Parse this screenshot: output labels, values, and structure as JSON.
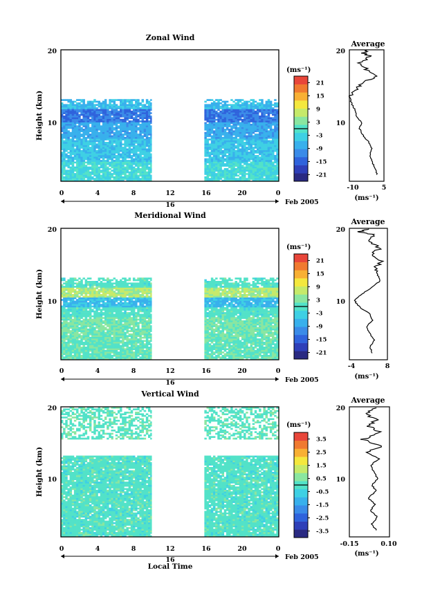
{
  "colorscale": [
    "#2a2a82",
    "#2e3fb8",
    "#2f63dc",
    "#3a8be8",
    "#38b0ec",
    "#3ed0e4",
    "#52e2c8",
    "#8ae6a0",
    "#c6ea6a",
    "#f4e83e",
    "#f8b034",
    "#f07a30",
    "#e8463a"
  ],
  "panels": [
    {
      "title": "Zonal Wind",
      "ylabel": "Height (km)",
      "yticks": [
        "10",
        "20"
      ],
      "xticks": [
        "0",
        "4",
        "8",
        "12",
        "16",
        "20",
        "0"
      ],
      "day_label": "16",
      "date_label": "Feb 2005",
      "colorbar_unit": "(ms⁻¹)",
      "colorbar_ticks": [
        "21",
        "15",
        "9",
        "3",
        "-3",
        "-9",
        "-15",
        "-21"
      ],
      "avg_title": "Average",
      "avg_yticks": [
        "10",
        "20"
      ],
      "avg_xticks": [
        "-10",
        "5"
      ],
      "avg_xlabel": "(ms⁻¹)"
    },
    {
      "title": "Meridional Wind",
      "ylabel": "Height (km)",
      "yticks": [
        "10",
        "20"
      ],
      "xticks": [
        "0",
        "4",
        "8",
        "12",
        "16",
        "20",
        "0"
      ],
      "day_label": "16",
      "date_label": "Feb 2005",
      "colorbar_unit": "(ms⁻¹)",
      "colorbar_ticks": [
        "21",
        "15",
        "9",
        "3",
        "-3",
        "-9",
        "-15",
        "-21"
      ],
      "avg_title": "Average",
      "avg_yticks": [
        "10",
        "20"
      ],
      "avg_xticks": [
        "-4",
        "8"
      ],
      "avg_xlabel": "(ms⁻¹)"
    },
    {
      "title": "Vertical Wind",
      "ylabel": "Height (km)",
      "yticks": [
        "10",
        "20"
      ],
      "xticks": [
        "0",
        "4",
        "8",
        "12",
        "16",
        "20",
        "0"
      ],
      "day_label": "16",
      "date_label": "Feb 2005",
      "colorbar_unit": "(ms⁻¹)",
      "colorbar_ticks": [
        "3.5",
        "2.5",
        "1.5",
        "0.5",
        "-0.5",
        "-1.5",
        "-2.5",
        "-3.5"
      ],
      "avg_title": "Average",
      "avg_yticks": [
        "10",
        "20"
      ],
      "avg_xticks": [
        "-0.15",
        "0.10"
      ],
      "avg_xlabel": "(ms⁻¹)"
    }
  ],
  "xlabel": "Local Time",
  "chart_data": [
    {
      "type": "heatmap",
      "title": "Zonal Wind",
      "xlabel": "",
      "ylabel": "Height (km)",
      "xlim": [
        0,
        24
      ],
      "ylim": [
        0,
        20
      ],
      "data_coverage_hours": [
        [
          0,
          10
        ],
        [
          15.8,
          24
        ]
      ],
      "colorbar_range": [
        -24,
        24
      ],
      "regimes": [
        {
          "z_range": [
            0,
            3
          ],
          "value": -2
        },
        {
          "z_range": [
            3,
            6.5
          ],
          "value": -5
        },
        {
          "z_range": [
            6.5,
            9
          ],
          "value": -8
        },
        {
          "z_range": [
            9,
            11
          ],
          "value": -13
        },
        {
          "z_range": [
            11,
            12.5
          ],
          "value": -6
        }
      ],
      "average_profile": {
        "x": [
          2,
          1,
          -1,
          -2,
          -1,
          -3,
          -6,
          -8,
          -7,
          -10,
          -11,
          -13,
          -14,
          -10,
          -6,
          2,
          -4,
          -8,
          -2,
          -6,
          -3
        ],
        "z": [
          1,
          2,
          3,
          4,
          5,
          6,
          7,
          8,
          9,
          10,
          11,
          12,
          13,
          14,
          15,
          16,
          17,
          18,
          19,
          19.5,
          20
        ],
        "xlim": [
          -14,
          6
        ]
      }
    },
    {
      "type": "heatmap",
      "title": "Meridional Wind",
      "xlabel": "",
      "ylabel": "Height (km)",
      "xlim": [
        0,
        24
      ],
      "ylim": [
        0,
        20
      ],
      "data_coverage_hours": [
        [
          0,
          10
        ],
        [
          15.8,
          24
        ]
      ],
      "colorbar_range": [
        -24,
        24
      ],
      "regimes": [
        {
          "z_range": [
            0,
            3
          ],
          "value": 1
        },
        {
          "z_range": [
            3,
            6.5
          ],
          "value": 2
        },
        {
          "z_range": [
            6.5,
            8
          ],
          "value": 0
        },
        {
          "z_range": [
            8,
            9.5
          ],
          "value": -6
        },
        {
          "z_range": [
            9.5,
            11
          ],
          "value": 6
        },
        {
          "z_range": [
            11,
            12.5
          ],
          "value": 0
        }
      ],
      "average_profile": {
        "x": [
          3,
          2,
          4,
          2,
          1,
          3,
          2,
          -2,
          -4,
          -1,
          3,
          6,
          5,
          4,
          7,
          3,
          6,
          2,
          4,
          -2,
          3
        ],
        "z": [
          1,
          2,
          3,
          4,
          5,
          6,
          7,
          8,
          9,
          10,
          11,
          12,
          13,
          14,
          15,
          16,
          17,
          18,
          19,
          19.5,
          20
        ],
        "xlim": [
          -6,
          9
        ]
      }
    },
    {
      "type": "heatmap",
      "title": "Vertical Wind",
      "xlabel": "Local Time",
      "ylabel": "Height (km)",
      "xlim": [
        0,
        24
      ],
      "ylim": [
        0,
        20
      ],
      "data_coverage_hours": [
        [
          0,
          10
        ],
        [
          15.8,
          24
        ]
      ],
      "colorbar_range": [
        -4,
        4
      ],
      "regimes": [
        {
          "z_range": [
            0,
            12.5
          ],
          "value": 0
        },
        {
          "z_range": [
            15,
            20
          ],
          "value": 0.1
        }
      ],
      "average_profile": {
        "x": [
          0.02,
          -0.01,
          0.03,
          -0.02,
          0.01,
          -0.04,
          0.02,
          -0.01,
          0.03,
          0.0,
          -0.02,
          0.04,
          -0.05,
          0.06,
          -0.08,
          0.05,
          -0.03,
          0.02,
          -0.06,
          0.03
        ],
        "z": [
          1,
          2,
          3,
          4,
          5,
          6,
          7,
          8,
          9,
          10,
          11,
          12,
          13,
          14,
          15,
          16,
          17,
          18,
          19,
          20
        ],
        "xlim": [
          -0.18,
          0.12
        ]
      }
    }
  ]
}
